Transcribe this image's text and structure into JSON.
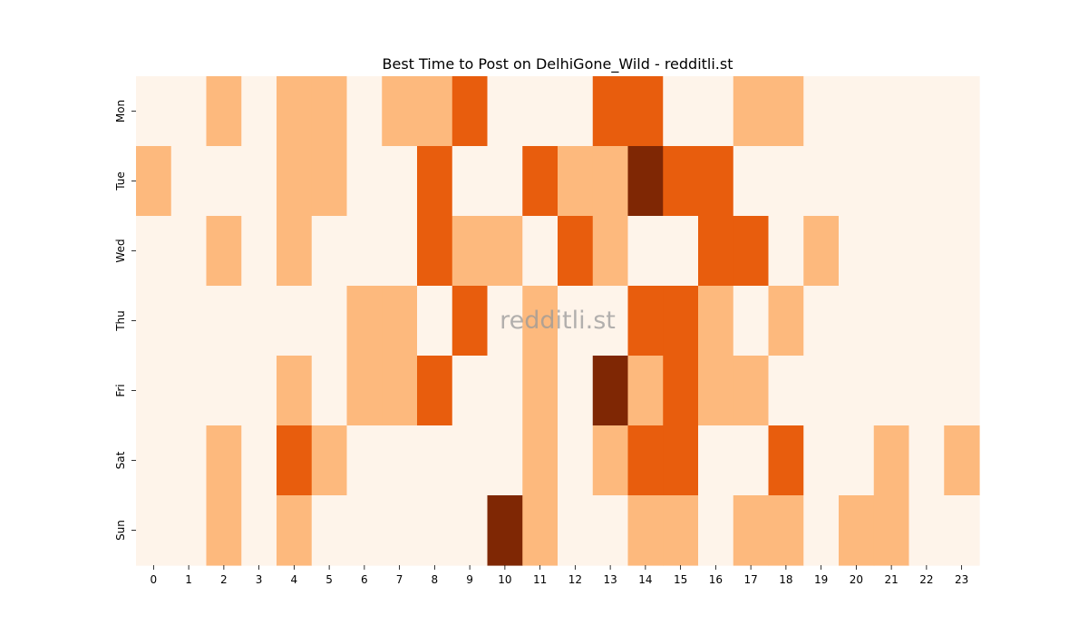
{
  "chart_data": {
    "type": "heatmap",
    "title": "Best Time to Post on DelhiGone_Wild - redditli.st",
    "watermark": "redditli.st",
    "xlabel": "",
    "ylabel": "",
    "x_categories": [
      "0",
      "1",
      "2",
      "3",
      "4",
      "5",
      "6",
      "7",
      "8",
      "9",
      "10",
      "11",
      "12",
      "13",
      "14",
      "15",
      "16",
      "17",
      "18",
      "19",
      "20",
      "21",
      "22",
      "23"
    ],
    "y_categories": [
      "Mon",
      "Tue",
      "Wed",
      "Thu",
      "Fri",
      "Sat",
      "Sun"
    ],
    "levels": [
      0,
      1,
      2,
      3
    ],
    "level_colors": [
      "#fef4ea",
      "#fdb97d",
      "#e85d0d",
      "#7f2704"
    ],
    "values": [
      [
        0,
        0,
        1,
        0,
        1,
        1,
        0,
        1,
        1,
        2,
        0,
        0,
        0,
        2,
        2,
        0,
        0,
        1,
        1,
        0,
        0,
        0,
        0,
        0
      ],
      [
        1,
        0,
        0,
        0,
        1,
        1,
        0,
        0,
        2,
        0,
        0,
        2,
        1,
        1,
        3,
        2,
        2,
        0,
        0,
        0,
        0,
        0,
        0,
        0
      ],
      [
        0,
        0,
        1,
        0,
        1,
        0,
        0,
        0,
        2,
        1,
        1,
        0,
        2,
        1,
        0,
        0,
        2,
        2,
        0,
        1,
        0,
        0,
        0,
        0
      ],
      [
        0,
        0,
        0,
        0,
        0,
        0,
        1,
        1,
        0,
        2,
        0,
        1,
        0,
        0,
        2,
        2,
        1,
        0,
        1,
        0,
        0,
        0,
        0,
        0
      ],
      [
        0,
        0,
        0,
        0,
        1,
        0,
        1,
        1,
        2,
        0,
        0,
        1,
        0,
        3,
        1,
        2,
        1,
        1,
        0,
        0,
        0,
        0,
        0,
        0
      ],
      [
        0,
        0,
        1,
        0,
        2,
        1,
        0,
        0,
        0,
        0,
        0,
        1,
        0,
        1,
        2,
        2,
        0,
        0,
        2,
        0,
        0,
        1,
        0,
        1
      ],
      [
        0,
        0,
        1,
        0,
        1,
        0,
        0,
        0,
        0,
        0,
        3,
        1,
        0,
        0,
        1,
        1,
        0,
        1,
        1,
        0,
        1,
        1,
        0,
        0
      ]
    ]
  }
}
